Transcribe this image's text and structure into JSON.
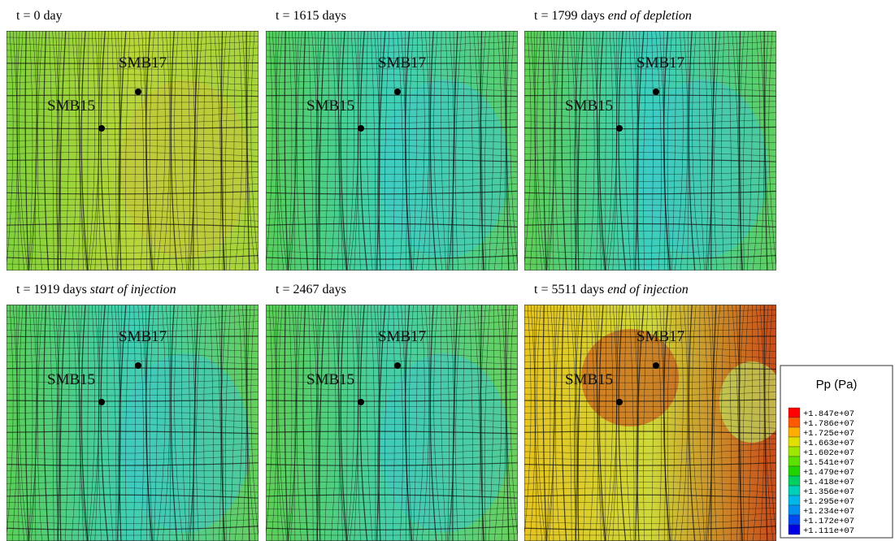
{
  "panels": [
    {
      "time": "t = 0 day",
      "wells": [
        "SMB17",
        "SMB15"
      ],
      "palette": [
        "#7fd23c",
        "#b8d63a",
        "#a6d43c"
      ]
    },
    {
      "time": "t = 1615 days",
      "wells": [
        "SMB17",
        "SMB15"
      ],
      "palette": [
        "#56cf5a",
        "#3fd0b8",
        "#5ccf6a"
      ]
    },
    {
      "time": "t = 1799 days",
      "note": "end of depletion",
      "wells": [
        "SMB17",
        "SMB15"
      ],
      "palette": [
        "#5fcf55",
        "#3ccfc0",
        "#60cf60"
      ]
    },
    {
      "time": "t = 1919 days",
      "note": "start of injection",
      "wells": [
        "SMB17",
        "SMB15"
      ],
      "palette": [
        "#5acf58",
        "#40cfb5",
        "#66cf5c"
      ]
    },
    {
      "time": "t = 2467 days",
      "wells": [
        "SMB17",
        "SMB15"
      ],
      "palette": [
        "#5ccf55",
        "#45cfa8",
        "#6ad05a"
      ]
    },
    {
      "time": "t = 5511 days",
      "note": "end of injection",
      "wells": [
        "SMB17",
        "SMB15"
      ],
      "palette": [
        "#e6c420",
        "#cfd83a",
        "#c84a1a"
      ]
    }
  ],
  "legend": {
    "title": "Pp (Pa)",
    "entries": [
      {
        "label": "+1.847e+07",
        "color": "#ff0000"
      },
      {
        "label": "+1.786e+07",
        "color": "#ff5a00"
      },
      {
        "label": "+1.725e+07",
        "color": "#ffae00"
      },
      {
        "label": "+1.663e+07",
        "color": "#e0df00"
      },
      {
        "label": "+1.602e+07",
        "color": "#9fe600"
      },
      {
        "label": "+1.541e+07",
        "color": "#5ce000"
      },
      {
        "label": "+1.479e+07",
        "color": "#1fd400"
      },
      {
        "label": "+1.418e+07",
        "color": "#00d060"
      },
      {
        "label": "+1.356e+07",
        "color": "#00d0b8"
      },
      {
        "label": "+1.295e+07",
        "color": "#00b8e8"
      },
      {
        "label": "+1.234e+07",
        "color": "#0090f0"
      },
      {
        "label": "+1.172e+07",
        "color": "#0048f0"
      },
      {
        "label": "+1.111e+07",
        "color": "#0000e0"
      }
    ]
  }
}
